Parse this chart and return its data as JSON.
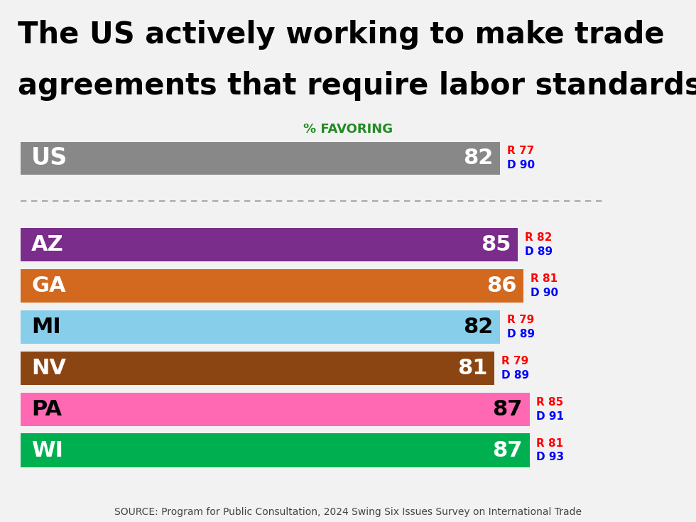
{
  "title_line1": "The US actively working to make trade",
  "title_line2": "agreements that require labor standards",
  "subtitle": "% FAVORING",
  "source": "SOURCE: Program for Public Consultation, 2024 Swing Six Issues Survey on International Trade",
  "background_color": "#f2f2f2",
  "title_bg_color": "#d8d8d8",
  "chart_bg_color": "#f2f2f2",
  "bars": [
    {
      "label": "US",
      "value": 82,
      "color": "#888888",
      "label_color": "#ffffff",
      "value_color": "#ffffff",
      "r": 77,
      "d": 90,
      "is_us": true
    },
    {
      "label": "AZ",
      "value": 85,
      "color": "#7b2d8b",
      "label_color": "#ffffff",
      "value_color": "#ffffff",
      "r": 82,
      "d": 89,
      "is_us": false
    },
    {
      "label": "GA",
      "value": 86,
      "color": "#d2691e",
      "label_color": "#ffffff",
      "value_color": "#ffffff",
      "r": 81,
      "d": 90,
      "is_us": false
    },
    {
      "label": "MI",
      "value": 82,
      "color": "#87ceeb",
      "label_color": "#000000",
      "value_color": "#000000",
      "r": 79,
      "d": 89,
      "is_us": false
    },
    {
      "label": "NV",
      "value": 81,
      "color": "#8b4513",
      "label_color": "#ffffff",
      "value_color": "#ffffff",
      "r": 79,
      "d": 89,
      "is_us": false
    },
    {
      "label": "PA",
      "value": 87,
      "color": "#ff69b4",
      "label_color": "#000000",
      "value_color": "#000000",
      "r": 85,
      "d": 91,
      "is_us": false
    },
    {
      "label": "WI",
      "value": 87,
      "color": "#00b050",
      "label_color": "#ffffff",
      "value_color": "#ffffff",
      "r": 81,
      "d": 93,
      "is_us": false
    }
  ],
  "title_fontsize": 30,
  "label_fontsize": 22,
  "value_fontsize": 22,
  "rd_fontsize": 11,
  "subtitle_fontsize": 13,
  "source_fontsize": 10
}
